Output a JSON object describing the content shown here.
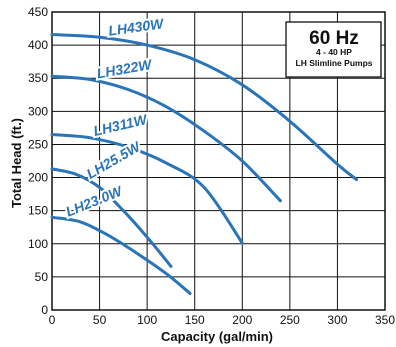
{
  "info_box": {
    "title": "60 Hz",
    "line1": "4 - 40 HP",
    "line2": "LH Slimline Pumps"
  },
  "colors": {
    "curve": "#2a74b8",
    "grid": "#111111",
    "background": "#ffffff"
  },
  "chart_data": {
    "type": "line",
    "xlabel": "Capacity (gal/min)",
    "ylabel": "Total Head (ft.)",
    "xlim": [
      0,
      350
    ],
    "ylim": [
      0,
      450
    ],
    "xticks": [
      0,
      50,
      100,
      150,
      200,
      250,
      300,
      350
    ],
    "yticks": [
      0,
      50,
      100,
      150,
      200,
      250,
      300,
      350,
      400,
      450
    ],
    "grid": true,
    "series": [
      {
        "name": "LH430W",
        "x": [
          0,
          50,
          100,
          150,
          200,
          250,
          300,
          320
        ],
        "y": [
          416,
          412,
          400,
          378,
          340,
          285,
          220,
          197
        ]
      },
      {
        "name": "LH322W",
        "x": [
          0,
          40,
          80,
          120,
          160,
          200,
          240
        ],
        "y": [
          353,
          348,
          333,
          307,
          270,
          225,
          165
        ]
      },
      {
        "name": "LH311W",
        "x": [
          0,
          40,
          80,
          120,
          160,
          200
        ],
        "y": [
          265,
          260,
          246,
          222,
          185,
          101
        ]
      },
      {
        "name": "LH25.5W",
        "x": [
          0,
          25,
          50,
          75,
          100,
          125
        ],
        "y": [
          213,
          205,
          185,
          150,
          110,
          66
        ]
      },
      {
        "name": "LH23.0W",
        "x": [
          0,
          30,
          60,
          90,
          120,
          145
        ],
        "y": [
          140,
          133,
          112,
          85,
          55,
          25
        ]
      }
    ]
  }
}
